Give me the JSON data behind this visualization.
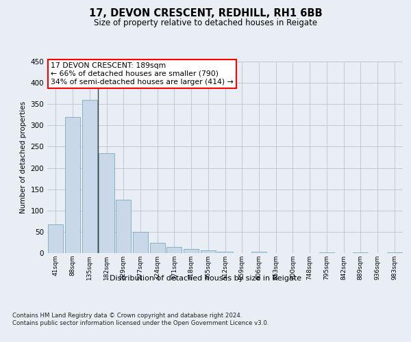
{
  "title": "17, DEVON CRESCENT, REDHILL, RH1 6BB",
  "subtitle": "Size of property relative to detached houses in Reigate",
  "xlabel": "Distribution of detached houses by size in Reigate",
  "ylabel": "Number of detached properties",
  "categories": [
    "41sqm",
    "88sqm",
    "135sqm",
    "182sqm",
    "229sqm",
    "277sqm",
    "324sqm",
    "371sqm",
    "418sqm",
    "465sqm",
    "512sqm",
    "559sqm",
    "606sqm",
    "653sqm",
    "700sqm",
    "748sqm",
    "795sqm",
    "842sqm",
    "889sqm",
    "936sqm",
    "983sqm"
  ],
  "values": [
    67,
    320,
    360,
    234,
    126,
    50,
    24,
    15,
    10,
    6,
    3,
    0,
    3,
    0,
    0,
    0,
    2,
    0,
    2,
    0,
    2
  ],
  "bar_color": "#c8d8e8",
  "bar_edge_color": "#7aaabb",
  "highlight_index": 3,
  "highlight_line_color": "#444444",
  "annotation_text": "17 DEVON CRESCENT: 189sqm\n← 66% of detached houses are smaller (790)\n34% of semi-detached houses are larger (414) →",
  "annotation_box_color": "white",
  "annotation_box_edge_color": "red",
  "ylim": [
    0,
    450
  ],
  "yticks": [
    0,
    50,
    100,
    150,
    200,
    250,
    300,
    350,
    400,
    450
  ],
  "footer_text": "Contains HM Land Registry data © Crown copyright and database right 2024.\nContains public sector information licensed under the Open Government Licence v3.0.",
  "background_color": "#e8eef4",
  "plot_background_color": "#e8eef4",
  "grid_color": "#c0c8d4"
}
